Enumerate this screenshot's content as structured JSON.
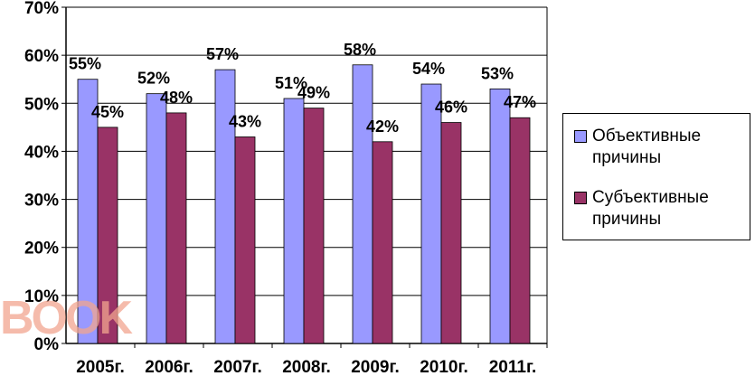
{
  "chart_data": {
    "type": "bar",
    "categories": [
      "2005г.",
      "2006г.",
      "2007г.",
      "2008г.",
      "2009г.",
      "2010г.",
      "2011г."
    ],
    "series": [
      {
        "name": "Объективные причины",
        "values": [
          55,
          52,
          57,
          51,
          58,
          54,
          53
        ],
        "color": "#9999ff",
        "labels": [
          "55%",
          "52%",
          "57%",
          "51%",
          "58%",
          "54%",
          "53%"
        ]
      },
      {
        "name": "Субъективные причины",
        "values": [
          45,
          48,
          43,
          49,
          42,
          46,
          47
        ],
        "color": "#993366",
        "labels": [
          "45%",
          "48%",
          "43%",
          "49%",
          "42%",
          "46%",
          "47%"
        ]
      }
    ],
    "yticks": [
      "0%",
      "10%",
      "20%",
      "30%",
      "40%",
      "50%",
      "60%",
      "70%"
    ],
    "ylim": [
      0,
      70
    ],
    "grid": true,
    "legend_position": "right"
  },
  "watermark": {
    "text": "BOOK"
  }
}
